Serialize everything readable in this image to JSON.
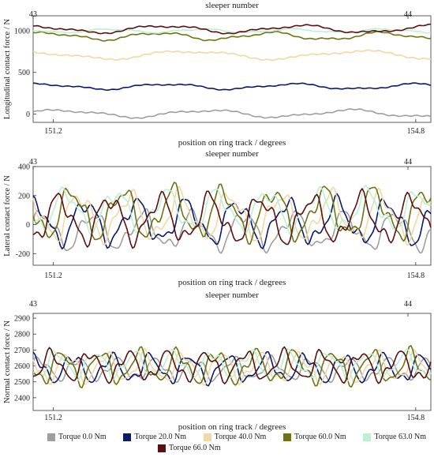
{
  "chart_data": [
    {
      "type": "line",
      "top_axis_label": "sleeper number",
      "top_ticks": [
        "43",
        "44"
      ],
      "ylabel": "Longitudinal contact force / N",
      "xlabel": "position on ring track / degrees",
      "xlim": [
        151.0,
        154.95
      ],
      "x_tick_labels": [
        "151.2",
        "154.8"
      ],
      "ylim": [
        -100,
        1180
      ],
      "yticks": [
        0,
        500,
        1000
      ],
      "series": [
        {
          "name": "Torque 0.0 Nm",
          "color": "#9e9e9e",
          "base": 5,
          "amp": 40,
          "freq": 0.7,
          "phase": 0.3
        },
        {
          "name": "Torque 20.0 Nm",
          "color": "#0a1a6e",
          "base": 330,
          "amp": 30,
          "freq": 0.8,
          "phase": 1.2
        },
        {
          "name": "Torque 40.0 Nm",
          "color": "#f3d7a6",
          "base": 710,
          "amp": 45,
          "freq": 0.6,
          "phase": 2.0
        },
        {
          "name": "Torque 60.0 Nm",
          "color": "#6e7414",
          "base": 935,
          "amp": 40,
          "freq": 0.9,
          "phase": 0.8
        },
        {
          "name": "Torque 63.0 Nm",
          "color": "#bdf0d2",
          "base": 1000,
          "amp": 20,
          "freq": 1.1,
          "phase": 2.6
        },
        {
          "name": "Torque 66.0 Nm",
          "color": "#5c1010",
          "base": 1020,
          "amp": 40,
          "freq": 0.75,
          "phase": 1.7
        }
      ]
    },
    {
      "type": "line",
      "top_axis_label": "sleeper number",
      "top_ticks": [
        "43",
        "44"
      ],
      "ylabel": "Lateral contact force / N",
      "xlabel": "position on ring track / degrees",
      "xlim": [
        151.0,
        154.95
      ],
      "x_tick_labels": [
        "151.2",
        "154.8"
      ],
      "ylim": [
        -280,
        400
      ],
      "yticks": [
        -200,
        0,
        200,
        400
      ],
      "series": [
        {
          "name": "Torque 0.0 Nm",
          "color": "#9e9e9e",
          "base": -40,
          "amp": 110,
          "freq": 2.0,
          "phase": 0.4
        },
        {
          "name": "Torque 20.0 Nm",
          "color": "#0a1a6e",
          "base": 20,
          "amp": 130,
          "freq": 2.0,
          "phase": 1.3
        },
        {
          "name": "Torque 40.0 Nm",
          "color": "#f3d7a6",
          "base": 60,
          "amp": 140,
          "freq": 2.0,
          "phase": 2.1
        },
        {
          "name": "Torque 60.0 Nm",
          "color": "#6e7414",
          "base": 80,
          "amp": 150,
          "freq": 2.0,
          "phase": 3.0
        },
        {
          "name": "Torque 63.0 Nm",
          "color": "#bdf0d2",
          "base": 100,
          "amp": 120,
          "freq": 2.0,
          "phase": 3.8
        },
        {
          "name": "Torque 66.0 Nm",
          "color": "#5c1010",
          "base": 40,
          "amp": 140,
          "freq": 2.0,
          "phase": 4.6
        }
      ]
    },
    {
      "type": "line",
      "top_axis_label": "sleeper number",
      "top_ticks": [
        "43",
        "44"
      ],
      "ylabel": "Normal contact force / N",
      "xlabel": "position on ring track / degrees",
      "xlim": [
        151.0,
        154.95
      ],
      "x_tick_labels": [
        "151.2",
        "154.8"
      ],
      "ylim": [
        2320,
        2930
      ],
      "yticks": [
        2400,
        2500,
        2600,
        2700,
        2800,
        2900
      ],
      "series": [
        {
          "name": "Torque 0.0 Nm",
          "color": "#9e9e9e",
          "base": 2580,
          "amp": 60,
          "freq": 2.6,
          "phase": 0.5
        },
        {
          "name": "Torque 20.0 Nm",
          "color": "#0a1a6e",
          "base": 2585,
          "amp": 75,
          "freq": 2.6,
          "phase": 1.4
        },
        {
          "name": "Torque 40.0 Nm",
          "color": "#f3d7a6",
          "base": 2590,
          "amp": 80,
          "freq": 2.6,
          "phase": 2.3
        },
        {
          "name": "Torque 60.0 Nm",
          "color": "#6e7414",
          "base": 2595,
          "amp": 90,
          "freq": 2.6,
          "phase": 3.2
        },
        {
          "name": "Torque 63.0 Nm",
          "color": "#bdf0d2",
          "base": 2610,
          "amp": 70,
          "freq": 2.6,
          "phase": 4.0
        },
        {
          "name": "Torque 66.0 Nm",
          "color": "#5c1010",
          "base": 2600,
          "amp": 80,
          "freq": 2.6,
          "phase": 4.9
        }
      ]
    }
  ],
  "legend": [
    {
      "label": "Torque 0.0 Nm",
      "color": "#9e9e9e"
    },
    {
      "label": "Torque 20.0 Nm",
      "color": "#0a1a6e"
    },
    {
      "label": "Torque 40.0 Nm",
      "color": "#f3d7a6"
    },
    {
      "label": "Torque 60.0 Nm",
      "color": "#6e7414"
    },
    {
      "label": "Torque 63.0 Nm",
      "color": "#bdf0d2"
    },
    {
      "label": "Torque 66.0 Nm",
      "color": "#5c1010"
    }
  ]
}
